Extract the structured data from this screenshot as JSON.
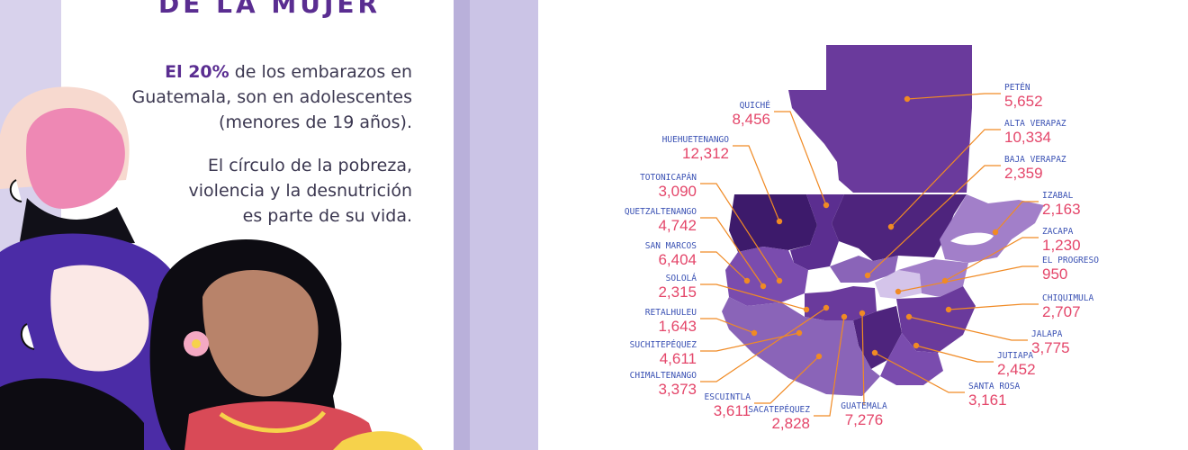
{
  "title": "DE LA MUJER",
  "paragraph1": {
    "highlight": "El 20%",
    "line1_rest": " de los embarazos en",
    "line2": "Guatemala, son en adolescentes",
    "line3": "(menores de 19 años)."
  },
  "paragraph2": {
    "line1": "El círculo de la pobreza,",
    "line2": "violencia y la desnutrición",
    "line3": "es parte de su vida."
  },
  "colors": {
    "title": "#5a2d91",
    "label_name": "#3b52b4",
    "label_value": "#e4466a",
    "leader_line": "#f08a24",
    "region_dark": "#3d1a6b",
    "region_mid": "#6a3a9c",
    "region_light": "#a27fc9",
    "region_pale": "#d4c4ea",
    "accent_lavender": "#cbc4e6"
  },
  "map": {
    "country": "Guatemala",
    "departments": [
      {
        "id": "peten",
        "name": "PETÉN",
        "value": "5,652"
      },
      {
        "id": "quiche",
        "name": "QUICHÉ",
        "value": "8,456"
      },
      {
        "id": "alta_verapaz",
        "name": "ALTA VERAPAZ",
        "value": "10,334"
      },
      {
        "id": "huehuetenango",
        "name": "HUEHUETENANGO",
        "value": "12,312"
      },
      {
        "id": "baja_verapaz",
        "name": "BAJA VERAPAZ",
        "value": "2,359"
      },
      {
        "id": "totonicapan",
        "name": "TOTONICAPÁN",
        "value": "3,090"
      },
      {
        "id": "izabal",
        "name": "IZABAL",
        "value": "2,163"
      },
      {
        "id": "quetzaltenango",
        "name": "QUETZALTENANGO",
        "value": "4,742"
      },
      {
        "id": "zacapa",
        "name": "ZACAPA",
        "value": "1,230"
      },
      {
        "id": "san_marcos",
        "name": "SAN MARCOS",
        "value": "6,404"
      },
      {
        "id": "el_progreso",
        "name": "EL PROGRESO",
        "value": "950"
      },
      {
        "id": "solola",
        "name": "SOLOLÁ",
        "value": "2,315"
      },
      {
        "id": "chiquimula",
        "name": "CHIQUIMULA",
        "value": "2,707"
      },
      {
        "id": "retalhuleu",
        "name": "RETALHULEU",
        "value": "1,643"
      },
      {
        "id": "jalapa",
        "name": "JALAPA",
        "value": "3,775"
      },
      {
        "id": "suchitepequez",
        "name": "SUCHITEPÉQUEZ",
        "value": "4,611"
      },
      {
        "id": "jutiapa",
        "name": "JUTIAPA",
        "value": "2,452"
      },
      {
        "id": "chimaltenango",
        "name": "CHIMALTENANGO",
        "value": "3,373"
      },
      {
        "id": "santa_rosa",
        "name": "SANTA ROSA",
        "value": "3,161"
      },
      {
        "id": "escuintla",
        "name": "ESCUINTLA",
        "value": "3,611"
      },
      {
        "id": "sacatepequez",
        "name": "SACATEPÉQUEZ",
        "value": "2,828"
      },
      {
        "id": "guatemala",
        "name": "GUATEMALA",
        "value": "7,276"
      }
    ]
  }
}
